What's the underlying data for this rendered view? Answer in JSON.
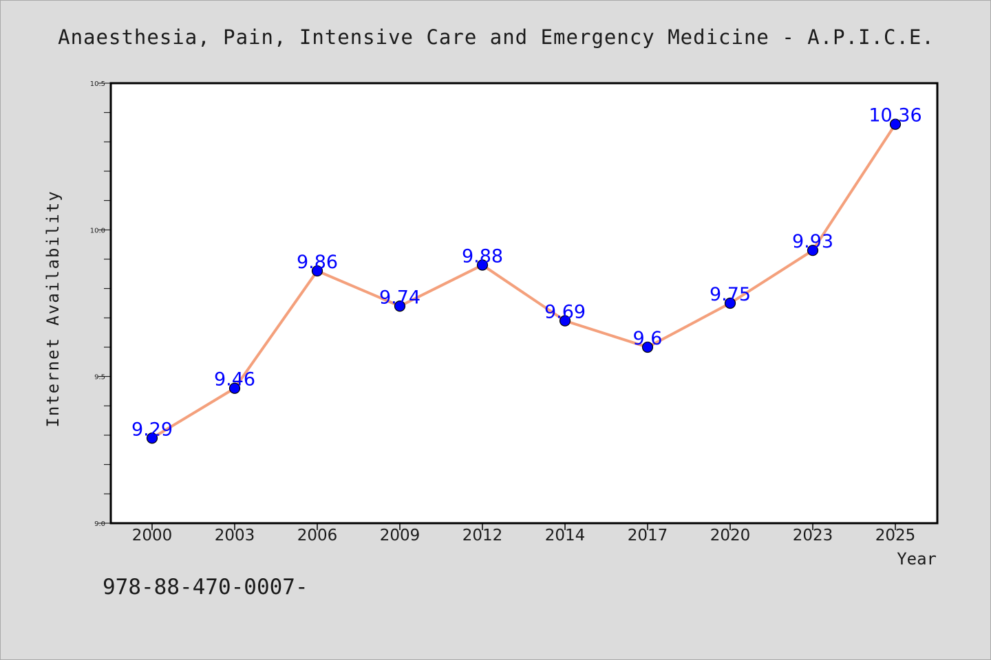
{
  "title": "Anaesthesia, Pain, Intensive Care and Emergency Medicine - A.P.I.C.E.",
  "footer_text": "978-88-470-0007-",
  "colors": {
    "background": "#dcdcdc",
    "plot_area": "#ffffff",
    "line": "#f4a07c",
    "marker": "#0000ff",
    "data_label": "#0000ff",
    "text": "#1a1a1a"
  },
  "chart_data": {
    "type": "line",
    "title": "Anaesthesia, Pain, Intensive Care and Emergency Medicine - A.P.I.C.E.",
    "xlabel": "Year",
    "ylabel": "Internet Availability",
    "categories": [
      "2000",
      "2003",
      "2006",
      "2009",
      "2012",
      "2014",
      "2017",
      "2020",
      "2023",
      "2025"
    ],
    "values": [
      9.29,
      9.46,
      9.86,
      9.74,
      9.88,
      9.69,
      9.6,
      9.75,
      9.93,
      10.36
    ],
    "data_labels": [
      "9.29",
      "9.46",
      "9.86",
      "9.74",
      "9.88",
      "9.69",
      "9.6",
      "9.75",
      "9.93",
      "10.36"
    ],
    "ylim": [
      9.0,
      10.5
    ],
    "y_major_ticks": [
      9.0,
      9.5,
      10.0,
      10.5
    ],
    "y_tick_labels": [
      "9.0",
      "9.5",
      "10.0",
      "10.5"
    ],
    "y_minor_step": 0.1,
    "grid": false,
    "legend": "none"
  }
}
